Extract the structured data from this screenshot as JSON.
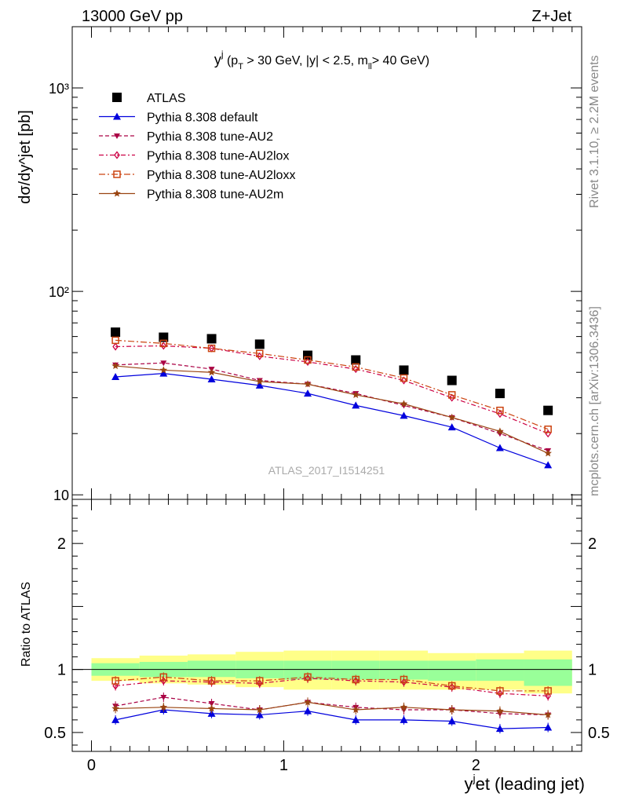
{
  "header": {
    "left": "13000 GeV pp",
    "right": "Z+Jet"
  },
  "side_labels": {
    "rivet": "Rivet 3.1.10, ≥ 2.2M events",
    "mcplots": "mcplots.cern.ch [arXiv:1306.3436]"
  },
  "watermark": "ATLAS_2017_I1514251",
  "colors": {
    "atlas": "#000000",
    "default": "#0000dd",
    "au2": "#aa0044",
    "au2lox": "#cc0044",
    "au2loxx": "#cc4411",
    "au2m": "#994411",
    "band_inner": "#99ff99",
    "band_outer": "#ffff88"
  },
  "chart_data": [
    {
      "type": "scatter",
      "title": "yj (pT > 30 GeV, |y| < 2.5, mll > 40 GeV)",
      "title_parts": {
        "main": "y",
        "sup": "j",
        "open": " (p",
        "sub_t": "T",
        "cut": " > 30 GeV, |y| < 2.5, m",
        "sub_ll": "ll",
        "tail": "> 40 GeV)"
      },
      "ylabel": "dσ/dy^jet [pb]",
      "yscale": "log",
      "xlim": [
        -0.1,
        2.55
      ],
      "ylim": [
        9.5,
        2000
      ],
      "yticks": [
        {
          "v": 10,
          "label": "10"
        },
        {
          "v": 100,
          "label": "10²"
        },
        {
          "v": 1000,
          "label": "10³"
        }
      ],
      "x": [
        0.125,
        0.375,
        0.625,
        0.875,
        1.125,
        1.375,
        1.625,
        1.875,
        2.125,
        2.375
      ],
      "series": [
        {
          "name": "ATLAS",
          "key": "atlas",
          "marker": "square",
          "line": "none",
          "values": [
            63,
            59.5,
            58.5,
            55,
            48.5,
            46,
            41,
            36.5,
            31.5,
            26
          ]
        },
        {
          "name": "Pythia 8.308 default",
          "key": "default",
          "marker": "triangle-up",
          "line": "solid",
          "values": [
            38,
            39.5,
            37,
            34.5,
            31.5,
            27.5,
            24.5,
            21.5,
            17,
            14
          ]
        },
        {
          "name": "Pythia 8.308 tune-AU2",
          "key": "au2",
          "marker": "triangle-down",
          "line": "dashed",
          "values": [
            43.5,
            44.5,
            41.5,
            36.5,
            35,
            31.5,
            27.5,
            24,
            20,
            16.5
          ]
        },
        {
          "name": "Pythia 8.308 tune-AU2lox",
          "key": "au2lox",
          "marker": "diamond-open",
          "line": "dashdot",
          "values": [
            53.5,
            54,
            52.5,
            48,
            45,
            41.5,
            36.5,
            30,
            25,
            20
          ]
        },
        {
          "name": "Pythia 8.308 tune-AU2loxx",
          "key": "au2loxx",
          "marker": "square-open",
          "line": "dashdot2",
          "values": [
            57.5,
            55.5,
            52.5,
            49.5,
            46,
            42.5,
            37.5,
            31,
            26,
            21
          ]
        },
        {
          "name": "Pythia 8.308 tune-AU2m",
          "key": "au2m",
          "marker": "star",
          "line": "solid",
          "values": [
            43,
            41,
            40,
            36,
            35,
            31,
            28,
            24,
            20.5,
            16
          ]
        }
      ]
    },
    {
      "type": "line",
      "xlabel": "y^jet (leading jet)",
      "xlabel_parts": {
        "main": "y",
        "sup": "j",
        "rest": "et (leading jet)"
      },
      "ylabel": "Ratio to ATLAS",
      "xlim": [
        -0.1,
        2.55
      ],
      "ylim": [
        0.35,
        2.35
      ],
      "xticks": [
        {
          "v": 0,
          "label": "0"
        },
        {
          "v": 1,
          "label": "1"
        },
        {
          "v": 2,
          "label": "2"
        }
      ],
      "yticks": [
        {
          "v": 0.5,
          "label": "0.5"
        },
        {
          "v": 1,
          "label": "1"
        },
        {
          "v": 2,
          "label": "2"
        }
      ],
      "bins": [
        0,
        0.25,
        0.5,
        0.75,
        1.0,
        1.25,
        1.5,
        1.75,
        2.0,
        2.25,
        2.5
      ],
      "band_inner": [
        [
          0.95,
          1.05
        ],
        [
          0.94,
          1.06
        ],
        [
          0.94,
          1.07
        ],
        [
          0.93,
          1.07
        ],
        [
          0.92,
          1.07
        ],
        [
          0.92,
          1.07
        ],
        [
          0.92,
          1.07
        ],
        [
          0.91,
          1.07
        ],
        [
          0.91,
          1.08
        ],
        [
          0.87,
          1.08
        ]
      ],
      "band_outer": [
        [
          0.91,
          1.09
        ],
        [
          0.89,
          1.11
        ],
        [
          0.88,
          1.12
        ],
        [
          0.86,
          1.14
        ],
        [
          0.84,
          1.15
        ],
        [
          0.84,
          1.15
        ],
        [
          0.84,
          1.15
        ],
        [
          0.84,
          1.13
        ],
        [
          0.84,
          1.13
        ],
        [
          0.81,
          1.15
        ]
      ],
      "x": [
        0.125,
        0.375,
        0.625,
        0.875,
        1.125,
        1.375,
        1.625,
        1.875,
        2.125,
        2.375
      ],
      "series": [
        {
          "name": "Pythia 8.308 default",
          "key": "default",
          "values": [
            0.6,
            0.68,
            0.65,
            0.64,
            0.67,
            0.6,
            0.6,
            0.59,
            0.53,
            0.54
          ]
        },
        {
          "name": "Pythia 8.308 tune-AU2",
          "key": "au2",
          "values": [
            0.71,
            0.78,
            0.73,
            0.68,
            0.74,
            0.7,
            0.68,
            0.68,
            0.65,
            0.64
          ]
        },
        {
          "name": "Pythia 8.308 tune-AU2lox",
          "key": "au2lox",
          "values": [
            0.87,
            0.91,
            0.9,
            0.89,
            0.93,
            0.91,
            0.9,
            0.86,
            0.81,
            0.79
          ]
        },
        {
          "name": "Pythia 8.308 tune-AU2loxx",
          "key": "au2loxx",
          "values": [
            0.91,
            0.94,
            0.91,
            0.91,
            0.94,
            0.92,
            0.92,
            0.87,
            0.83,
            0.83
          ]
        },
        {
          "name": "Pythia 8.308 tune-AU2m",
          "key": "au2m",
          "values": [
            0.69,
            0.7,
            0.69,
            0.68,
            0.74,
            0.68,
            0.7,
            0.68,
            0.67,
            0.64
          ]
        }
      ]
    }
  ]
}
